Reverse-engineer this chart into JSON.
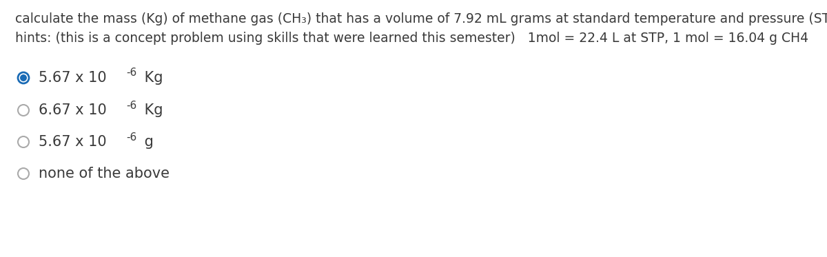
{
  "background_color": "#ffffff",
  "title_line1": "calculate the mass (Kg) of methane gas (CH₃) that has a volume of 7.92 mL grams at standard temperature and pressure (STP)",
  "hints_line": "hints: (this is a concept problem using skills that were learned this semester)   1mol = 22.4 L at STP, 1 mol = 16.04 g CH4",
  "options": [
    {
      "main": "5.67 x 10",
      "sup": "-6",
      "after": " Kg",
      "selected": true
    },
    {
      "main": "6.67 x 10",
      "sup": "-6",
      "after": " Kg",
      "selected": false
    },
    {
      "main": "5.67 x 10",
      "sup": "-6",
      "after": " g",
      "selected": false
    },
    {
      "main": "none of the above",
      "sup": "",
      "after": "",
      "selected": false
    }
  ],
  "text_color": "#3a3a3a",
  "selected_ring_color": "#1a6bb5",
  "selected_fill_color": "#1a6bb5",
  "unselected_ring_color": "#aaaaaa",
  "font_size_title": 13.5,
  "font_size_hints": 13.5,
  "font_size_options": 15,
  "font_size_super": 11
}
